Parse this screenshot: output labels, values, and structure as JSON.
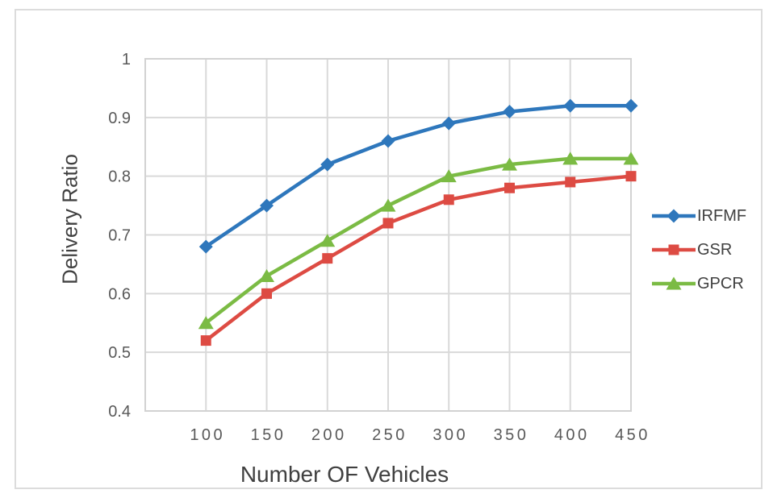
{
  "chart_data": {
    "type": "line",
    "title": "",
    "xlabel": "Number OF Vehicles",
    "ylabel": "Delivery Ratio",
    "x": [
      100,
      150,
      200,
      250,
      300,
      350,
      400,
      450
    ],
    "x_tick_labels": [
      "100",
      "150",
      "200",
      "250",
      "300",
      "350",
      "400",
      "450"
    ],
    "y_ticks": [
      0.4,
      0.5,
      0.6,
      0.7,
      0.8,
      0.9,
      1
    ],
    "y_tick_labels": [
      "0.4",
      "0.5",
      "0.6",
      "0.7",
      "0.8",
      "0.9",
      "1"
    ],
    "xlim": [
      50,
      450
    ],
    "ylim": [
      0.4,
      1
    ],
    "x_grid_step": 50,
    "grid": true,
    "legend_position": "right",
    "series": [
      {
        "name": "IRFMF",
        "color": "#2E77BC",
        "marker": "diamond",
        "values": [
          0.68,
          0.75,
          0.82,
          0.86,
          0.89,
          0.91,
          0.92,
          0.92
        ]
      },
      {
        "name": "GSR",
        "color": "#DD4B43",
        "marker": "square",
        "values": [
          0.52,
          0.6,
          0.66,
          0.72,
          0.76,
          0.78,
          0.79,
          0.8
        ]
      },
      {
        "name": "GPCR",
        "color": "#7BBB44",
        "marker": "triangle",
        "values": [
          0.55,
          0.63,
          0.69,
          0.75,
          0.8,
          0.82,
          0.83,
          0.83
        ]
      }
    ],
    "colors": {
      "grid": "#D9D9D9",
      "plot_border": "#D2D2D2",
      "tick_text": "#595959",
      "title_text": "#404040",
      "frame_border": "#DCDCDC",
      "background": "#FFFFFF"
    }
  }
}
